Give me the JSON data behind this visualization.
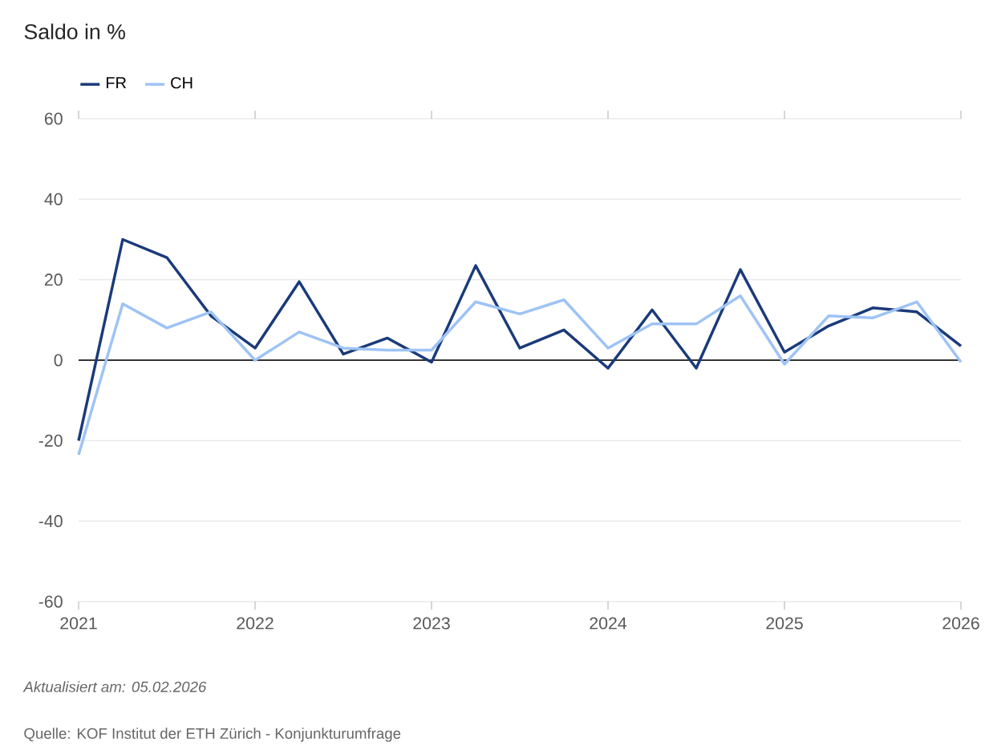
{
  "chart_data": {
    "type": "line",
    "title": "Saldo in %",
    "x": [
      2021,
      2021.25,
      2021.5,
      2021.75,
      2022,
      2022.25,
      2022.5,
      2022.75,
      2023,
      2023.25,
      2023.5,
      2023.75,
      2024,
      2024.25,
      2024.5,
      2024.75,
      2025,
      2025.25,
      2025.5,
      2025.75,
      2026
    ],
    "series": [
      {
        "name": "FR",
        "color": "#1a3a7a",
        "values": [
          -20,
          30,
          25.5,
          11,
          3,
          19.5,
          1.5,
          5.5,
          -0.5,
          23.5,
          3,
          7.5,
          -2,
          12.5,
          -2,
          22.5,
          2,
          8.5,
          13,
          12,
          3.5
        ]
      },
      {
        "name": "CH",
        "color": "#9ec3f5",
        "values": [
          -23.5,
          14,
          8,
          12,
          0,
          7,
          3,
          2.5,
          2.5,
          14.5,
          11.5,
          15,
          3,
          9,
          9,
          16,
          -1,
          11,
          10.5,
          14.5,
          -0.5
        ]
      }
    ],
    "xlim": [
      2021,
      2026
    ],
    "xticks": [
      2021,
      2022,
      2023,
      2024,
      2025,
      2026
    ],
    "ylim": [
      -60,
      60
    ],
    "yticks": [
      -60,
      -40,
      -20,
      0,
      20,
      40,
      60
    ],
    "grid": "y",
    "legend": "top left",
    "marker": "none",
    "line_style": "solid",
    "ref_lines": [
      {
        "axis": "y",
        "value": 0,
        "color": "#333333"
      }
    ],
    "annotations": [
      "Aktualisiert am: 05.02.2026",
      "Quelle: KOF Institut der ETH Zürich - Konjunkturumfrage"
    ]
  }
}
